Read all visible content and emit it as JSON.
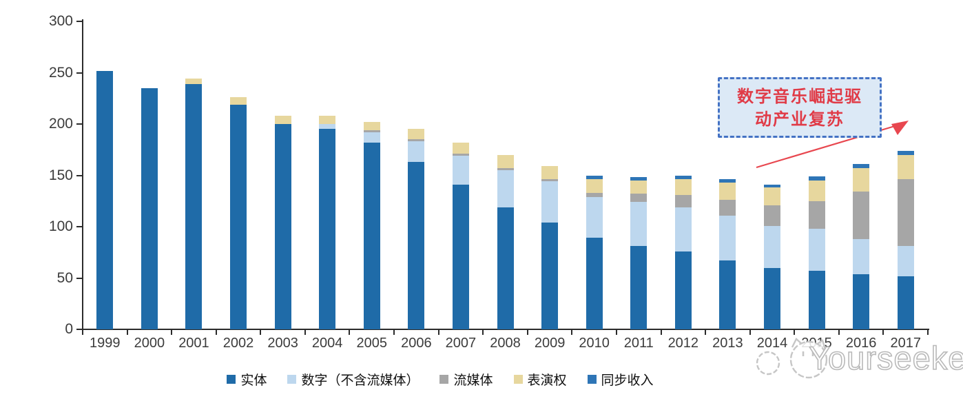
{
  "watermark": {
    "text": "Yourseeker",
    "logo": "cat-logo",
    "color": "#c0c0c0"
  },
  "annotation": {
    "lines": [
      "数字音乐崛起驱",
      "动产业复苏"
    ],
    "text_color": "#E03B47",
    "border_color": "#4472C4",
    "fill_color": "#DCE9F6",
    "arrow_color": "#E8474F"
  },
  "chart_data": {
    "type": "bar",
    "stacked": true,
    "title": "",
    "xlabel": "",
    "ylabel": "",
    "ylim": [
      0,
      300
    ],
    "yticks": [
      0,
      50,
      100,
      150,
      200,
      250,
      300
    ],
    "grid": false,
    "legend_position": "bottom",
    "categories": [
      "1999",
      "2000",
      "2001",
      "2002",
      "2003",
      "2004",
      "2005",
      "2006",
      "2007",
      "2008",
      "2009",
      "2010",
      "2011",
      "2012",
      "2013",
      "2014",
      "2015",
      "2016",
      "2017"
    ],
    "series": [
      {
        "id": "physical",
        "name": "实体",
        "color": "#1F6BA8",
        "values": [
          252,
          235,
          239,
          219,
          200,
          195,
          182,
          163,
          141,
          119,
          104,
          89,
          81,
          76,
          67,
          60,
          57,
          54,
          52
        ]
      },
      {
        "id": "digital",
        "name": "数字（不含流媒体）",
        "color": "#BDD7EE",
        "values": [
          0,
          0,
          0,
          0,
          0,
          5,
          10,
          20,
          28,
          36,
          40,
          40,
          43,
          43,
          44,
          41,
          41,
          34,
          29
        ]
      },
      {
        "id": "streaming",
        "name": "流媒体",
        "color": "#A6A6A6",
        "values": [
          0,
          0,
          0,
          0,
          0,
          0,
          2,
          2,
          2,
          2,
          2,
          4,
          8,
          12,
          15,
          20,
          27,
          46,
          65
        ]
      },
      {
        "id": "performance",
        "name": "表演权",
        "color": "#E7D79E",
        "values": [
          0,
          0,
          5,
          7,
          8,
          8,
          8,
          10,
          11,
          13,
          13,
          13,
          13,
          15,
          17,
          17,
          20,
          23,
          24
        ]
      },
      {
        "id": "sync",
        "name": "同步收入",
        "color": "#2E75B6",
        "values": [
          0,
          0,
          0,
          0,
          0,
          0,
          0,
          0,
          0,
          0,
          0,
          4,
          3,
          4,
          3,
          3,
          4,
          4,
          4
        ]
      }
    ]
  }
}
